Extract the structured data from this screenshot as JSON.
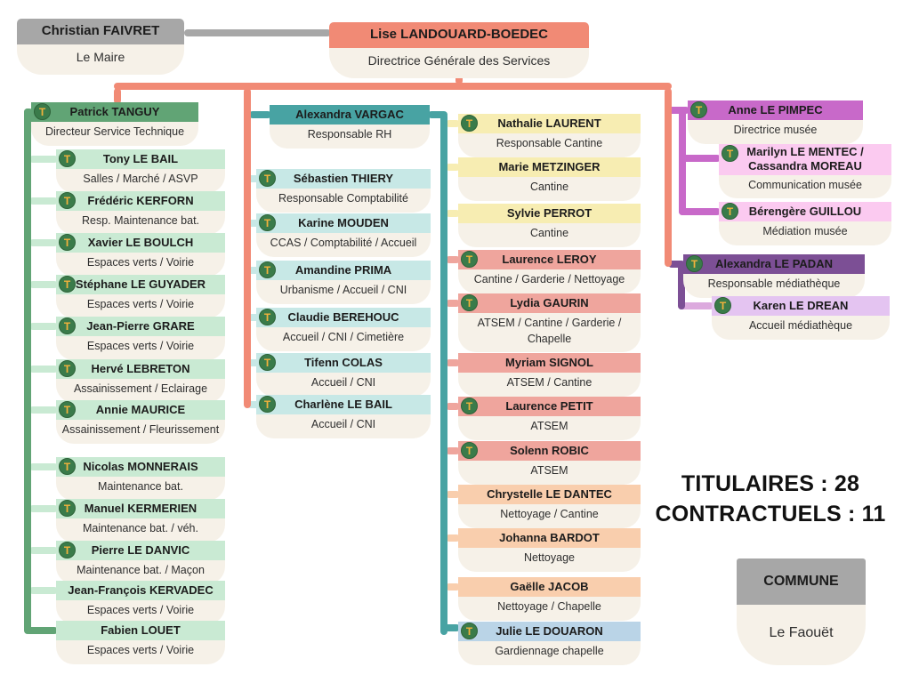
{
  "colors": {
    "gray": "#a7a7a7",
    "salmon": "#f18a75",
    "cream": "#f6f1e8",
    "green": "#61a475",
    "lightgreen": "#c9ead3",
    "teal": "#48a3a3",
    "lightteal": "#c7e8e6",
    "yellow": "#f7edb2",
    "pink": "#efa59d",
    "peach": "#f9cead",
    "blue": "#bad4e7",
    "orchid": "#c869c9",
    "lightpink": "#fbcaf0",
    "purple": "#7c4f95",
    "lilac": "#e4c4f1",
    "pinkstub": "#dcaade",
    "badge_bg": "#3a7b4a",
    "badge_fg": "#f2b23c"
  },
  "badge": {
    "glyph": "T",
    "meaning": "titulaire"
  },
  "nodes": {
    "maire": {
      "name": "Christian FAIVRET",
      "role": "Le Maire"
    },
    "dgs": {
      "name": "Lise LANDOUARD-BOEDEC",
      "role": "Directrice Générale des Services"
    },
    "commune": {
      "name": "COMMUNE",
      "role": "Le Faouët"
    }
  },
  "stats": {
    "titulaires": 28,
    "contractuels": 11,
    "titulaires_text": "TITULAIRES : 28",
    "contractuels_text": "CONTRACTUELS : 11"
  },
  "groups": [
    {
      "id": "service-technique",
      "leader": {
        "name": "Patrick TANGUY",
        "role": "Directeur Service Technique",
        "color": "green",
        "badge": true
      },
      "members": [
        {
          "name": "Tony LE BAIL",
          "role": "Salles / Marché / ASVP",
          "color": "lightgreen",
          "badge": true
        },
        {
          "name": "Frédéric KERFORN",
          "role": "Resp. Maintenance bat.",
          "color": "lightgreen",
          "badge": true
        },
        {
          "name": "Xavier LE BOULCH",
          "role": "Espaces verts / Voirie",
          "color": "lightgreen",
          "badge": true
        },
        {
          "name": "Stéphane LE GUYADER",
          "role": "Espaces verts / Voirie",
          "color": "lightgreen",
          "badge": true
        },
        {
          "name": "Jean-Pierre GRARE",
          "role": "Espaces verts / Voirie",
          "color": "lightgreen",
          "badge": true
        },
        {
          "name": "Hervé LEBRETON",
          "role": "Assainissement / Eclairage",
          "color": "lightgreen",
          "badge": true
        },
        {
          "name": "Annie MAURICE",
          "role": "Assainissement / Fleurissement",
          "color": "lightgreen",
          "badge": true
        },
        {
          "name": "Nicolas MONNERAIS",
          "role": "Maintenance bat.",
          "color": "lightgreen",
          "badge": true
        },
        {
          "name": "Manuel KERMERIEN",
          "role": "Maintenance bat. / véh.",
          "color": "lightgreen",
          "badge": true
        },
        {
          "name": "Pierre LE DANVIC",
          "role": "Maintenance bat. / Maçon",
          "color": "lightgreen",
          "badge": true
        },
        {
          "name": "Jean-François KERVADEC",
          "role": "Espaces verts / Voirie",
          "color": "lightgreen",
          "badge": false
        },
        {
          "name": "Fabien LOUET",
          "role": "Espaces verts / Voirie",
          "color": "lightgreen",
          "badge": false
        }
      ]
    },
    {
      "id": "administration",
      "leader": {
        "name": "Alexandra VARGAC",
        "role": "Responsable RH",
        "color": "teal",
        "badge": false
      },
      "members": [
        {
          "name": "Sébastien THIERY",
          "role": "Responsable Comptabilité",
          "color": "lightteal",
          "badge": true
        },
        {
          "name": "Karine MOUDEN",
          "role": "CCAS / Comptabilité / Accueil",
          "color": "lightteal",
          "badge": true
        },
        {
          "name": "Amandine PRIMA",
          "role": "Urbanisme / Accueil / CNI",
          "color": "lightteal",
          "badge": true
        },
        {
          "name": "Claudie BEREHOUC",
          "role": "Accueil / CNI / Cimetière",
          "color": "lightteal",
          "badge": true
        },
        {
          "name": "Tifenn COLAS",
          "role": "Accueil / CNI",
          "color": "lightteal",
          "badge": true
        },
        {
          "name": "Charlène LE BAIL",
          "role": "Accueil / CNI",
          "color": "lightteal",
          "badge": true
        }
      ]
    },
    {
      "id": "cantine-entretien",
      "members": [
        {
          "name": "Nathalie LAURENT",
          "role": "Responsable Cantine",
          "color": "yellow",
          "badge": true
        },
        {
          "name": "Marie METZINGER",
          "role": "Cantine",
          "color": "yellow",
          "badge": false
        },
        {
          "name": "Sylvie PERROT",
          "role": "Cantine",
          "color": "yellow",
          "badge": false
        },
        {
          "name": "Laurence LEROY",
          "role": "Cantine / Garderie / Nettoyage",
          "color": "pink",
          "badge": true
        },
        {
          "name": "Lydia GAURIN",
          "role": "ATSEM / Cantine / Garderie / Chapelle",
          "color": "pink",
          "badge": true
        },
        {
          "name": "Myriam SIGNOL",
          "role": "ATSEM / Cantine",
          "color": "pink",
          "badge": false
        },
        {
          "name": "Laurence PETIT",
          "role": "ATSEM",
          "color": "pink",
          "badge": true
        },
        {
          "name": "Solenn ROBIC",
          "role": "ATSEM",
          "color": "pink",
          "badge": true
        },
        {
          "name": "Chrystelle LE DANTEC",
          "role": "Nettoyage / Cantine",
          "color": "peach",
          "badge": false
        },
        {
          "name": "Johanna BARDOT",
          "role": "Nettoyage",
          "color": "peach",
          "badge": false
        },
        {
          "name": "Gaëlle JACOB",
          "role": "Nettoyage / Chapelle",
          "color": "peach",
          "badge": false
        },
        {
          "name": "Julie LE DOUARON",
          "role": "Gardiennage chapelle",
          "color": "blue",
          "badge": true
        }
      ]
    },
    {
      "id": "musee",
      "leader": {
        "name": "Anne LE PIMPEC",
        "role": "Directrice musée",
        "color": "orchid",
        "badge": true
      },
      "members": [
        {
          "name": "Marilyn LE MENTEC / Cassandra MOREAU",
          "role": "Communication musée",
          "color": "lightpink",
          "badge": true
        },
        {
          "name": "Bérengère GUILLOU",
          "role": "Médiation musée",
          "color": "lightpink",
          "badge": true
        }
      ]
    },
    {
      "id": "mediatheque",
      "leader": {
        "name": "Alexandra LE PADAN",
        "role": "Responsable médiathèque",
        "color": "purple",
        "badge": true
      },
      "members": [
        {
          "name": "Karen LE DREAN",
          "role": "Accueil médiathèque",
          "color": "lilac",
          "badge": true
        }
      ]
    }
  ]
}
